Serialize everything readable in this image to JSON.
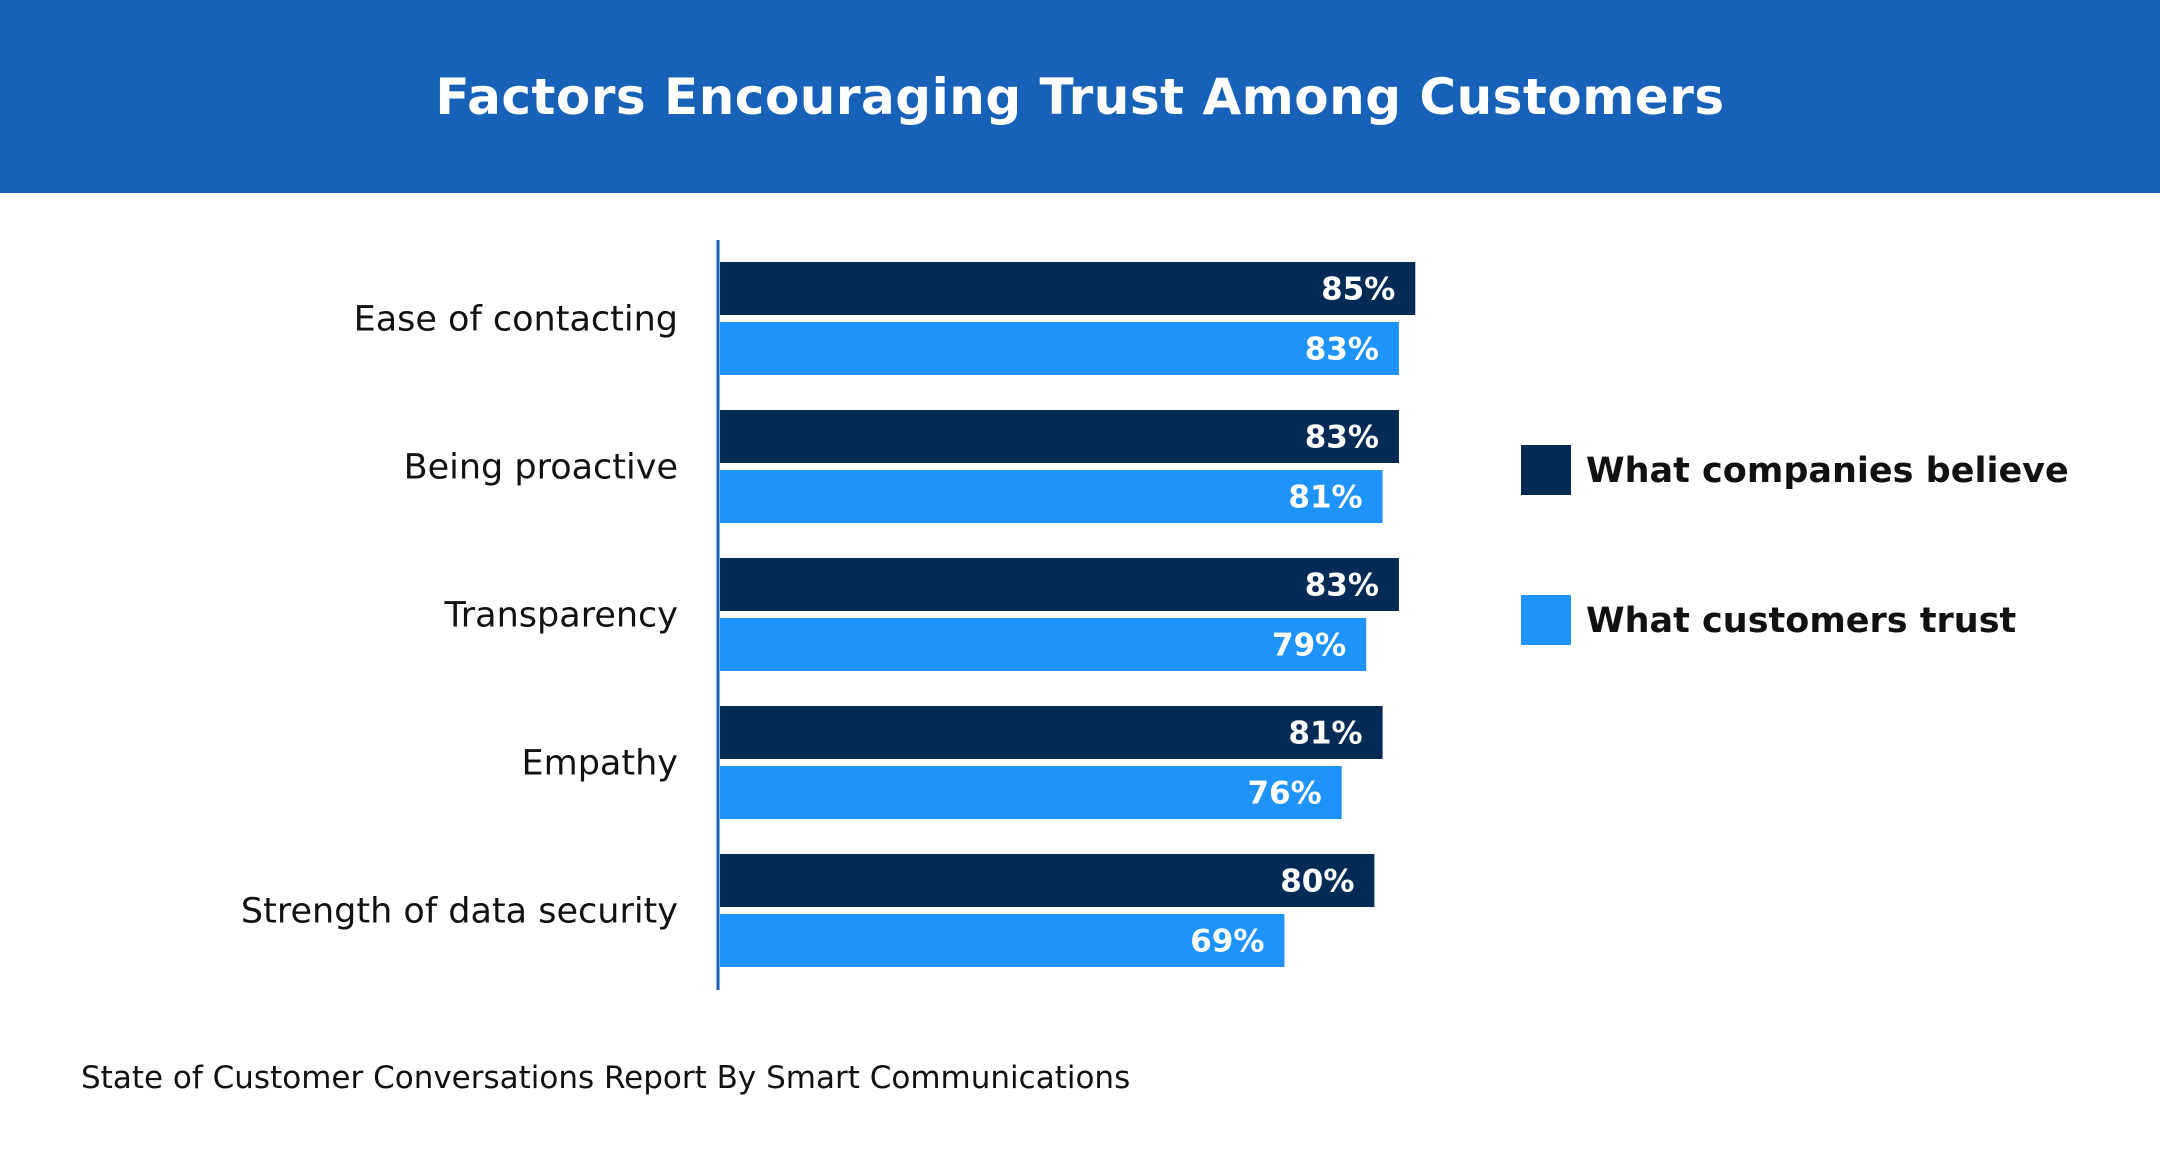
{
  "title": "Factors Encouraging Trust Among Customers",
  "source": "State of Customer Conversations Report By Smart Communications",
  "colors": {
    "header_bg": "#1762b8",
    "companies": "#032b56",
    "customers": "#1e93fb",
    "axis": "#1762b8"
  },
  "chart_data": {
    "type": "bar",
    "orientation": "horizontal",
    "title": "Factors Encouraging Trust Among Customers",
    "categories": [
      "Ease of contacting",
      "Being proactive",
      "Transparency",
      "Empathy",
      "Strength of data security"
    ],
    "series": [
      {
        "name": "What companies believe",
        "values": [
          85,
          83,
          83,
          81,
          80
        ],
        "labels": [
          "85%",
          "83%",
          "83%",
          "81%",
          "80%"
        ]
      },
      {
        "name": "What customers trust",
        "values": [
          83,
          81,
          79,
          76,
          69
        ],
        "labels": [
          "83%",
          "81%",
          "79%",
          "76%",
          "69%"
        ]
      }
    ],
    "xlim": [
      0,
      100
    ],
    "legend_position": "right",
    "xlabel": "",
    "ylabel": ""
  }
}
